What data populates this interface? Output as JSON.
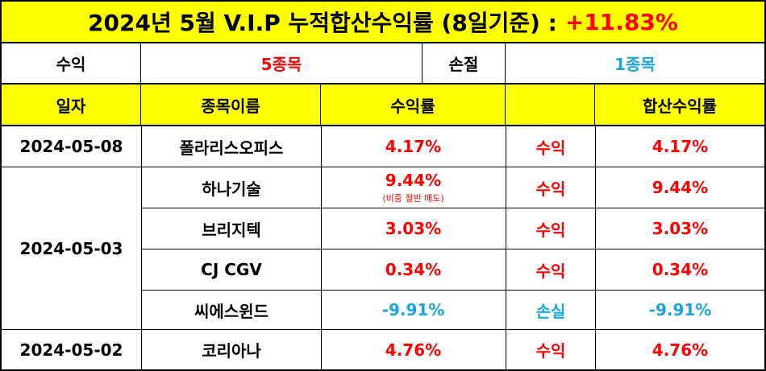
{
  "title": {
    "text": "2024년 5월 V.I.P 누적합산수익률 (8일기준) :",
    "total_return": "+11.83%"
  },
  "summary": {
    "profit_label": "수익",
    "profit_count": "5종목",
    "loss_label": "손절",
    "loss_count": "1종목"
  },
  "headers": {
    "date": "일자",
    "stock_name": "종목이름",
    "return": "수익률",
    "result": "",
    "cumulative": "합산수익률"
  },
  "rows": [
    {
      "date": "2024-05-08",
      "name": "폴라리스오피스",
      "return": "4.17%",
      "note": "",
      "result": "수익",
      "cumulative": "4.17%"
    },
    {
      "date": "",
      "name": "하나기술",
      "return": "9.44%",
      "note": "(비중 절반 매도)",
      "result": "수익",
      "cumulative": "9.44%"
    },
    {
      "date": "2024-05-03",
      "name": "브리지텍",
      "return": "3.03%",
      "note": "",
      "result": "수익",
      "cumulative": "3.03%"
    },
    {
      "date": "",
      "name": "CJ CGV",
      "return": "0.34%",
      "note": "",
      "result": "수익",
      "cumulative": "0.34%"
    },
    {
      "date": "",
      "name": "씨에스윈드",
      "return": "-9.91%",
      "note": "",
      "result": "손실",
      "cumulative": "-9.91%"
    },
    {
      "date": "2024-05-02",
      "name": "코리아나",
      "return": "4.76%",
      "note": "",
      "result": "수익",
      "cumulative": "4.76%"
    }
  ],
  "colors": {
    "header_bg": "#ffff00",
    "profit": "#ff0000",
    "loss": "#1aa6e0"
  }
}
